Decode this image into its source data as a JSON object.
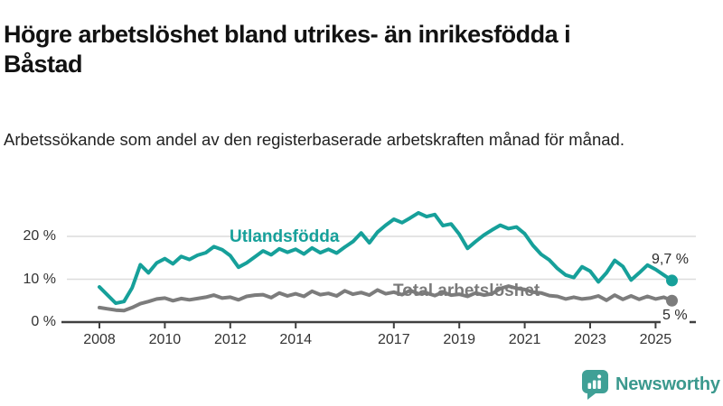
{
  "header": {
    "title": "Högre arbetslöshet bland utrikes- än inrikesfödda i Båstad",
    "subtitle": "Arbetssökande som andel av den registerbaserade arbetskraften månad för månad."
  },
  "chart_data": {
    "type": "line",
    "title": "Högre arbetslöshet bland utrikes- än inrikesfödda i Båstad",
    "subtitle": "Arbetssökande som andel av den registerbaserade arbetskraften månad för månad.",
    "unit": "percent",
    "ylim": [
      0,
      27
    ],
    "grid": "horizontal",
    "ytick_values": [
      0,
      10,
      20
    ],
    "ytick_labels": [
      "0 %",
      "10 %",
      "20 %"
    ],
    "xtick_labels": [
      "2008",
      "2010",
      "2012",
      "2014",
      "2017",
      "2019",
      "2021",
      "2023",
      "2025"
    ],
    "x_start": 2008.0,
    "x_step": 0.25,
    "x_end": 2025.5,
    "series": [
      {
        "name": "Utlandsfödda",
        "color": "#16a09a",
        "end_label": "9,7 %",
        "end_value": 9.7,
        "values": [
          8.2,
          6.3,
          4.4,
          4.8,
          8.0,
          13.4,
          11.5,
          13.8,
          14.8,
          13.6,
          15.3,
          14.6,
          15.6,
          16.2,
          17.6,
          16.9,
          15.5,
          12.8,
          13.8,
          15.2,
          16.6,
          15.7,
          17.1,
          16.3,
          17.0,
          15.9,
          17.3,
          16.2,
          17.0,
          16.1,
          17.5,
          18.8,
          20.8,
          18.5,
          21.0,
          22.6,
          24.0,
          23.2,
          24.3,
          25.5,
          24.6,
          25.1,
          22.5,
          22.9,
          20.5,
          17.2,
          18.8,
          20.3,
          21.5,
          22.6,
          21.8,
          22.2,
          20.6,
          17.9,
          15.8,
          14.5,
          12.5,
          11.0,
          10.4,
          12.9,
          11.9,
          9.4,
          11.5,
          14.4,
          13.0,
          9.8,
          11.5,
          13.3,
          12.3,
          11.0,
          9.7
        ]
      },
      {
        "name": "Total arbetslöshet",
        "color": "#7c7c7c",
        "end_label": "5 %",
        "end_value": 5.0,
        "values": [
          3.4,
          3.1,
          2.8,
          2.7,
          3.4,
          4.3,
          4.8,
          5.4,
          5.6,
          5.0,
          5.5,
          5.2,
          5.5,
          5.8,
          6.3,
          5.6,
          5.8,
          5.2,
          6.0,
          6.3,
          6.4,
          5.7,
          6.8,
          6.1,
          6.6,
          6.0,
          7.2,
          6.4,
          6.7,
          6.1,
          7.3,
          6.5,
          6.9,
          6.3,
          7.5,
          6.6,
          7.0,
          6.4,
          7.4,
          6.6,
          6.8,
          6.2,
          7.0,
          6.3,
          6.5,
          6.0,
          6.8,
          6.3,
          6.6,
          7.8,
          8.4,
          7.9,
          7.6,
          7.0,
          6.8,
          6.2,
          6.0,
          5.4,
          5.8,
          5.4,
          5.6,
          6.1,
          5.1,
          6.3,
          5.3,
          6.1,
          5.3,
          6.0,
          5.4,
          5.8,
          5.0
        ]
      }
    ]
  },
  "colors": {
    "accent_teal": "#16a09a",
    "line_gray": "#7c7c7c",
    "axis": "#404040",
    "gridline": "#dcdcdc",
    "logo_teal": "#3fa096"
  },
  "footer": {
    "brand": "Newsworthy"
  }
}
